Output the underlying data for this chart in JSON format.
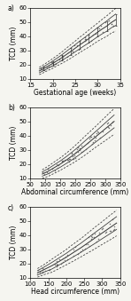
{
  "panel_a": {
    "label": "a)",
    "xlabel": "Gestational age (weeks)",
    "ylabel": "TCD (mm)",
    "xlim": [
      15,
      35
    ],
    "ylim": [
      10,
      60
    ],
    "xticks": [
      15,
      20,
      25,
      30,
      35
    ],
    "yticks": [
      10,
      20,
      30,
      40,
      50,
      60
    ],
    "x": [
      17,
      18,
      19,
      20,
      21,
      22,
      23,
      24,
      25,
      26,
      27,
      28,
      29,
      30,
      31,
      32,
      33,
      34
    ],
    "mean": [
      15.5,
      17.2,
      19.0,
      20.8,
      22.8,
      24.8,
      27.0,
      29.2,
      31.5,
      33.8,
      36.0,
      38.2,
      40.5,
      42.8,
      45.0,
      47.0,
      49.5,
      51.5
    ],
    "sd1_up": [
      16.8,
      18.6,
      20.5,
      22.5,
      24.6,
      26.8,
      29.2,
      31.6,
      34.0,
      36.5,
      38.8,
      41.2,
      43.6,
      46.0,
      48.4,
      50.6,
      53.2,
      55.5
    ],
    "sd1_dn": [
      14.2,
      15.8,
      17.5,
      19.1,
      21.0,
      22.8,
      24.8,
      26.8,
      29.0,
      31.1,
      33.2,
      35.2,
      37.4,
      39.6,
      41.6,
      43.4,
      45.8,
      47.5
    ],
    "sd2_up": [
      18.1,
      20.0,
      22.0,
      24.2,
      26.4,
      28.8,
      31.4,
      34.0,
      36.5,
      39.2,
      41.6,
      44.2,
      46.7,
      49.2,
      51.8,
      54.2,
      56.9,
      59.5
    ],
    "sd2_dn": [
      12.9,
      14.4,
      16.0,
      17.4,
      19.2,
      20.8,
      22.6,
      24.4,
      26.5,
      28.4,
      30.4,
      32.2,
      34.3,
      36.4,
      38.2,
      39.8,
      42.1,
      43.5
    ]
  },
  "panel_b": {
    "label": "b)",
    "xlabel": "Abdominal circumference (mm)",
    "ylabel": "TCD (mm)",
    "xlim": [
      50,
      350
    ],
    "ylim": [
      10,
      60
    ],
    "xticks": [
      50,
      100,
      150,
      200,
      250,
      300,
      350
    ],
    "yticks": [
      10,
      20,
      30,
      40,
      50,
      60
    ],
    "x": [
      90,
      110,
      130,
      150,
      170,
      190,
      210,
      230,
      250,
      270,
      290,
      310,
      330
    ],
    "mean": [
      13.0,
      15.0,
      17.5,
      20.0,
      22.8,
      25.8,
      29.0,
      32.5,
      36.0,
      39.5,
      43.0,
      46.5,
      50.0
    ],
    "sd1_up": [
      14.5,
      16.8,
      19.5,
      22.2,
      25.2,
      28.5,
      32.0,
      35.8,
      39.5,
      43.2,
      47.0,
      50.8,
      54.5
    ],
    "sd1_dn": [
      11.5,
      13.2,
      15.5,
      17.8,
      20.4,
      23.1,
      26.0,
      29.2,
      32.5,
      35.8,
      39.0,
      42.2,
      45.5
    ],
    "sd2_up": [
      16.0,
      18.6,
      21.5,
      24.4,
      27.6,
      31.2,
      35.0,
      39.1,
      43.0,
      46.9,
      51.0,
      55.1,
      59.0
    ],
    "sd2_dn": [
      10.0,
      11.4,
      13.5,
      15.6,
      18.0,
      20.4,
      23.0,
      25.9,
      29.0,
      32.1,
      35.0,
      37.9,
      41.0
    ]
  },
  "panel_c": {
    "label": "c)",
    "xlabel": "Head circumference (mm)",
    "ylabel": "TCD (mm)",
    "xlim": [
      100,
      350
    ],
    "ylim": [
      10,
      60
    ],
    "xticks": [
      100,
      150,
      200,
      250,
      300,
      350
    ],
    "yticks": [
      10,
      20,
      30,
      40,
      50,
      60
    ],
    "x": [
      120,
      140,
      160,
      180,
      200,
      220,
      240,
      260,
      280,
      300,
      320,
      340
    ],
    "mean": [
      13.5,
      16.0,
      18.5,
      21.5,
      24.5,
      27.8,
      31.0,
      34.5,
      38.0,
      41.5,
      45.0,
      48.5
    ],
    "sd1_up": [
      15.0,
      17.8,
      20.8,
      24.0,
      27.2,
      30.8,
      34.2,
      38.0,
      41.8,
      45.5,
      49.3,
      53.0
    ],
    "sd1_dn": [
      12.0,
      14.2,
      16.2,
      19.0,
      21.8,
      24.8,
      27.8,
      31.0,
      34.2,
      37.5,
      40.7,
      44.0
    ],
    "sd2_up": [
      16.5,
      19.6,
      23.1,
      26.5,
      29.9,
      33.8,
      37.4,
      41.5,
      45.6,
      49.5,
      53.6,
      57.5
    ],
    "sd2_dn": [
      10.5,
      12.4,
      13.9,
      16.5,
      19.1,
      21.8,
      24.6,
      27.5,
      30.4,
      33.5,
      36.4,
      39.5
    ]
  },
  "line_color": "#333333",
  "scatter_color": "#555555",
  "bg_color": "#f5f5f0",
  "font_size": 5,
  "label_font_size": 5.5
}
